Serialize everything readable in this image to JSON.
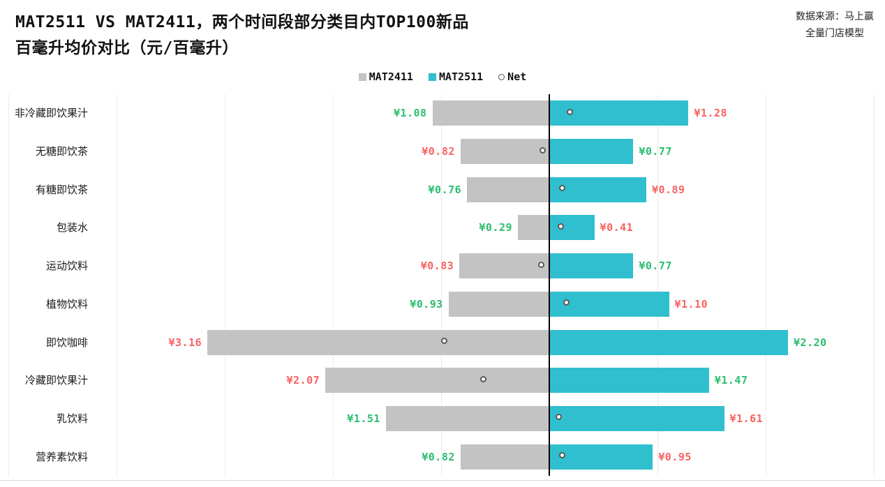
{
  "title": {
    "line1": "MAT2511 VS MAT2411，两个时间段部分类目内TOP100新品",
    "line2": "百毫升均价对比（元/百毫升）"
  },
  "source": {
    "line1": "数据来源：马上赢",
    "line2": "全量门店模型"
  },
  "legend": {
    "mat2411": "MAT2411",
    "mat2511": "MAT2511",
    "net": "Net"
  },
  "colors": {
    "mat2411_bar": "#C3C3C3",
    "mat2511_bar": "#30BFCE",
    "red": "#F96262",
    "green": "#2BBE6E",
    "zero_line": "#000000",
    "gridline": "#EAEAEA"
  },
  "chart_data": {
    "type": "bar",
    "variant": "horizontal-diverging-tornado",
    "title": "MAT2511 VS MAT2411，两个时间段部分类目内TOP100新品百毫升均价对比（元/百毫升）",
    "unit": "元/百毫升",
    "categories": [
      "非冷藏即饮果汁",
      "无糖即饮茶",
      "有糖即饮茶",
      "包装水",
      "运动饮料",
      "植物饮料",
      "即饮咖啡",
      "冷藏即饮果汁",
      "乳饮料",
      "营养素饮料"
    ],
    "series": [
      {
        "name": "MAT2411",
        "side": "left",
        "values": [
          1.08,
          0.82,
          0.76,
          0.29,
          0.83,
          0.93,
          3.16,
          2.07,
          1.51,
          0.82
        ],
        "labels": [
          "¥1.08",
          "¥0.82",
          "¥0.76",
          "¥0.29",
          "¥0.83",
          "¥0.93",
          "¥3.16",
          "¥2.07",
          "¥1.51",
          "¥0.82"
        ],
        "label_colors": [
          "green",
          "red",
          "green",
          "green",
          "red",
          "green",
          "red",
          "red",
          "green",
          "green"
        ]
      },
      {
        "name": "MAT2511",
        "side": "right",
        "values": [
          1.28,
          0.77,
          0.89,
          0.41,
          0.77,
          1.1,
          2.2,
          1.47,
          1.61,
          0.95
        ],
        "labels": [
          "¥1.28",
          "¥0.77",
          "¥0.89",
          "¥0.41",
          "¥0.77",
          "¥1.10",
          "¥2.20",
          "¥1.47",
          "¥1.61",
          "¥0.95"
        ],
        "label_colors": [
          "red",
          "green",
          "red",
          "red",
          "green",
          "red",
          "green",
          "green",
          "red",
          "red"
        ]
      },
      {
        "name": "Net",
        "marker": "circle",
        "values": [
          0.2,
          -0.05,
          0.13,
          0.12,
          -0.06,
          0.17,
          -0.96,
          -0.6,
          0.1,
          0.13
        ]
      }
    ],
    "axis": {
      "gridline_interval": 1,
      "gridline_units": [
        -5,
        -4,
        -3,
        -2,
        -1,
        1,
        2,
        3
      ],
      "zero_line": true,
      "legend_position": "top-center",
      "grid": true
    }
  }
}
